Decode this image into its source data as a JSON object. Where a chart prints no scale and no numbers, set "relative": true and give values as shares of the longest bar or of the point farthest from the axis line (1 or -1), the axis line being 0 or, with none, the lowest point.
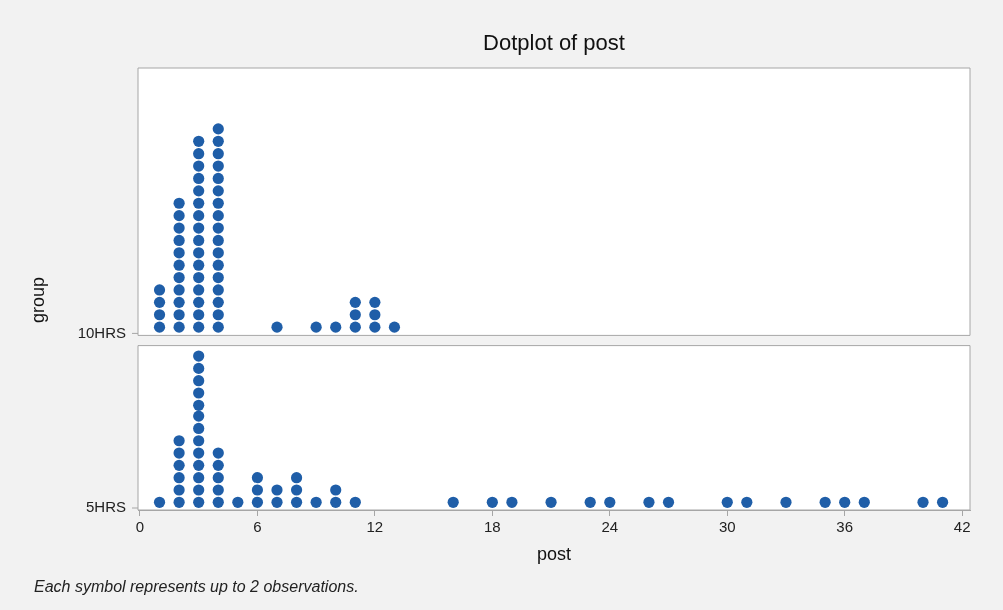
{
  "chart_data": [
    {
      "type": "scatter",
      "relative": true,
      "title": "Dotplot of post",
      "ylabel": "group",
      "xlim": [
        -0.1,
        42.4
      ],
      "tick_labels": false,
      "marker": "circle",
      "legend": false,
      "series": [
        {
          "name": "10HRS",
          "color": "#1f5ea8",
          "x": [
            1,
            1,
            1,
            1,
            2,
            2,
            2,
            2,
            2,
            2,
            2,
            2,
            2,
            2,
            2,
            3,
            3,
            3,
            3,
            3,
            3,
            3,
            3,
            3,
            3,
            3,
            3,
            3,
            3,
            3,
            3,
            4,
            4,
            4,
            4,
            4,
            4,
            4,
            4,
            4,
            4,
            4,
            4,
            4,
            4,
            4,
            4,
            4,
            7,
            9,
            10,
            11,
            11,
            11,
            12,
            12,
            12,
            13
          ],
          "values": [
            0.04,
            0.1,
            0.16,
            0.22,
            0.04,
            0.1,
            0.16,
            0.22,
            0.28,
            0.34,
            0.4,
            0.46,
            0.52,
            0.58,
            0.64,
            0.04,
            0.1,
            0.16,
            0.22,
            0.28,
            0.34,
            0.4,
            0.46,
            0.52,
            0.58,
            0.64,
            0.7,
            0.76,
            0.82,
            0.88,
            0.94,
            0.04,
            0.1,
            0.16,
            0.22,
            0.28,
            0.34,
            0.4,
            0.46,
            0.52,
            0.58,
            0.64,
            0.7,
            0.76,
            0.82,
            0.88,
            0.94,
            1,
            0.04,
            0.04,
            0.04,
            0.04,
            0.1,
            0.16,
            0.04,
            0.1,
            0.16,
            0.04
          ]
        }
      ]
    },
    {
      "type": "scatter",
      "relative": true,
      "xlabel": "post",
      "xlim": [
        -0.1,
        42.4
      ],
      "xticks": [
        0,
        6,
        12,
        18,
        24,
        30,
        36,
        42
      ],
      "tick_labels": "x",
      "marker": "circle",
      "legend": false,
      "annotations": [
        "Each symbol represents up to 2 observations."
      ],
      "series": [
        {
          "name": "5HRS",
          "color": "#1f5ea8",
          "x": [
            1,
            2,
            2,
            2,
            2,
            2,
            2,
            3,
            3,
            3,
            3,
            3,
            3,
            3,
            3,
            3,
            3,
            3,
            3,
            3,
            4,
            4,
            4,
            4,
            4,
            5,
            6,
            6,
            6,
            7,
            7,
            8,
            8,
            8,
            9,
            10,
            10,
            11,
            16,
            18,
            19,
            21,
            23,
            24,
            26,
            27,
            30,
            31,
            33,
            35,
            36,
            37,
            40,
            41
          ],
          "values": [
            0.05,
            0.05,
            0.13,
            0.21,
            0.29,
            0.37,
            0.45,
            0.05,
            0.13,
            0.21,
            0.29,
            0.37,
            0.45,
            0.53,
            0.61,
            0.68,
            0.76,
            0.84,
            0.92,
            1,
            0.05,
            0.13,
            0.21,
            0.29,
            0.37,
            0.05,
            0.05,
            0.13,
            0.21,
            0.05,
            0.13,
            0.05,
            0.13,
            0.21,
            0.05,
            0.05,
            0.13,
            0.05,
            0.05,
            0.05,
            0.05,
            0.05,
            0.05,
            0.05,
            0.05,
            0.05,
            0.05,
            0.05,
            0.05,
            0.05,
            0.05,
            0.05,
            0.05,
            0.05
          ]
        }
      ]
    }
  ]
}
